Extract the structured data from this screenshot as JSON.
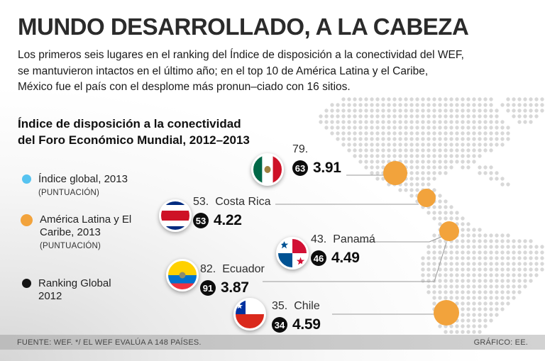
{
  "colors": {
    "latam_orange": "#F2A33C",
    "global_blue": "#56C3F0",
    "ranking_black": "#141414",
    "map_dot_gray": "#D8D8D8",
    "footer_bar_gray": "#C7C7C7"
  },
  "header": {
    "title": "MUNDO DESARROLLADO, A LA CABEZA",
    "intro_lines": [
      "Los primeros seis lugares en el ranking del Índice de disposición a la conectividad del WEF,",
      "se mantuvieron intactos en el último año; en el top 10 de América Latina y el Caribe,",
      "México fue el país con el desplome más pronun–ciado con 16 sitios."
    ]
  },
  "chart": {
    "title_lines": [
      "Índice de disposición a la conectividad",
      "del Foro Económico Mundial, 2012–2013"
    ]
  },
  "legend": [
    {
      "icon": "blue-dot",
      "label": "Índice global, 2013",
      "sublabel": "(PUNTUACIÓN)"
    },
    {
      "icon": "orange-dot",
      "label": "América Latina y El Caribe, 2013",
      "sublabel": "(PUNTUACIÓN)"
    },
    {
      "icon": "black-dot",
      "label": "Ranking Global 2012",
      "sublabel": ""
    }
  ],
  "countries": [
    {
      "flag": "mexico-flag",
      "rank_2013": "79.",
      "name": "",
      "rank_2012": "63",
      "score": "3.91"
    },
    {
      "flag": "costa-rica-flag",
      "rank_2013": "53.",
      "name": "Costa Rica",
      "rank_2012": "53",
      "score": "4.22"
    },
    {
      "flag": "panama-flag",
      "rank_2013": "43.",
      "name": "Panamá",
      "rank_2012": "46",
      "score": "4.49"
    },
    {
      "flag": "ecuador-flag",
      "rank_2013": "82.",
      "name": "Ecuador",
      "rank_2012": "91",
      "score": "3.87"
    },
    {
      "flag": "chile-flag",
      "rank_2013": "35.",
      "name": "Chile",
      "rank_2012": "34",
      "score": "4.59"
    }
  ],
  "chart_data": {
    "type": "map",
    "title": "Índice de disposición a la conectividad del Foro Económico Mundial, 2012–2013",
    "series": [
      {
        "country": "México",
        "rank_2013": 79,
        "rank_2012": 63,
        "score_2013": 3.91
      },
      {
        "country": "Costa Rica",
        "rank_2013": 53,
        "rank_2012": 53,
        "score_2013": 4.22
      },
      {
        "country": "Panamá",
        "rank_2013": 43,
        "rank_2012": 46,
        "score_2013": 4.49
      },
      {
        "country": "Ecuador",
        "rank_2013": 82,
        "rank_2012": 91,
        "score_2013": 3.87
      },
      {
        "country": "Chile",
        "rank_2013": 35,
        "rank_2012": 34,
        "score_2013": 4.59
      }
    ],
    "legend": [
      "Índice global, 2013 (PUNTUACIÓN)",
      "América Latina y El Caribe, 2013 (PUNTUACIÓN)",
      "Ranking Global 2012"
    ],
    "note": "El WEF evalúa a 148 países."
  },
  "footer": {
    "source": "FUENTE: WEF. */ EL WEF EVALÚA A 148 PAÍSES.",
    "credit": "GRÁFICO: EE."
  }
}
